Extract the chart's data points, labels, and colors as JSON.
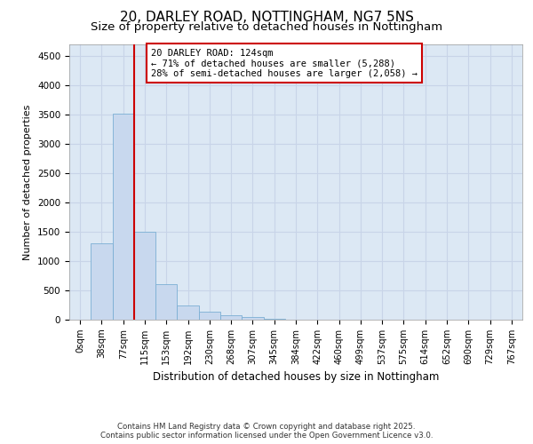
{
  "title_line1": "20, DARLEY ROAD, NOTTINGHAM, NG7 5NS",
  "title_line2": "Size of property relative to detached houses in Nottingham",
  "xlabel": "Distribution of detached houses by size in Nottingham",
  "ylabel": "Number of detached properties",
  "bar_labels": [
    "0sqm",
    "38sqm",
    "77sqm",
    "115sqm",
    "153sqm",
    "192sqm",
    "230sqm",
    "268sqm",
    "307sqm",
    "345sqm",
    "384sqm",
    "422sqm",
    "460sqm",
    "499sqm",
    "537sqm",
    "575sqm",
    "614sqm",
    "652sqm",
    "690sqm",
    "729sqm",
    "767sqm"
  ],
  "bar_values": [
    0,
    1300,
    3520,
    1500,
    600,
    240,
    130,
    75,
    40,
    15,
    5,
    3,
    2,
    1,
    1,
    1,
    0,
    0,
    0,
    0,
    0
  ],
  "bar_color": "#c8d8ee",
  "bar_edge_color": "#7bafd4",
  "grid_color": "#c8d4e8",
  "background_color": "#dce8f4",
  "vline_color": "#cc0000",
  "annotation_text": "20 DARLEY ROAD: 124sqm\n← 71% of detached houses are smaller (5,288)\n28% of semi-detached houses are larger (2,058) →",
  "annotation_box_color": "#cc0000",
  "annotation_bg": "#ffffff",
  "ylim": [
    0,
    4700
  ],
  "yticks": [
    0,
    500,
    1000,
    1500,
    2000,
    2500,
    3000,
    3500,
    4000,
    4500
  ],
  "footer_line1": "Contains HM Land Registry data © Crown copyright and database right 2025.",
  "footer_line2": "Contains public sector information licensed under the Open Government Licence v3.0.",
  "title_fontsize": 11,
  "subtitle_fontsize": 9.5
}
